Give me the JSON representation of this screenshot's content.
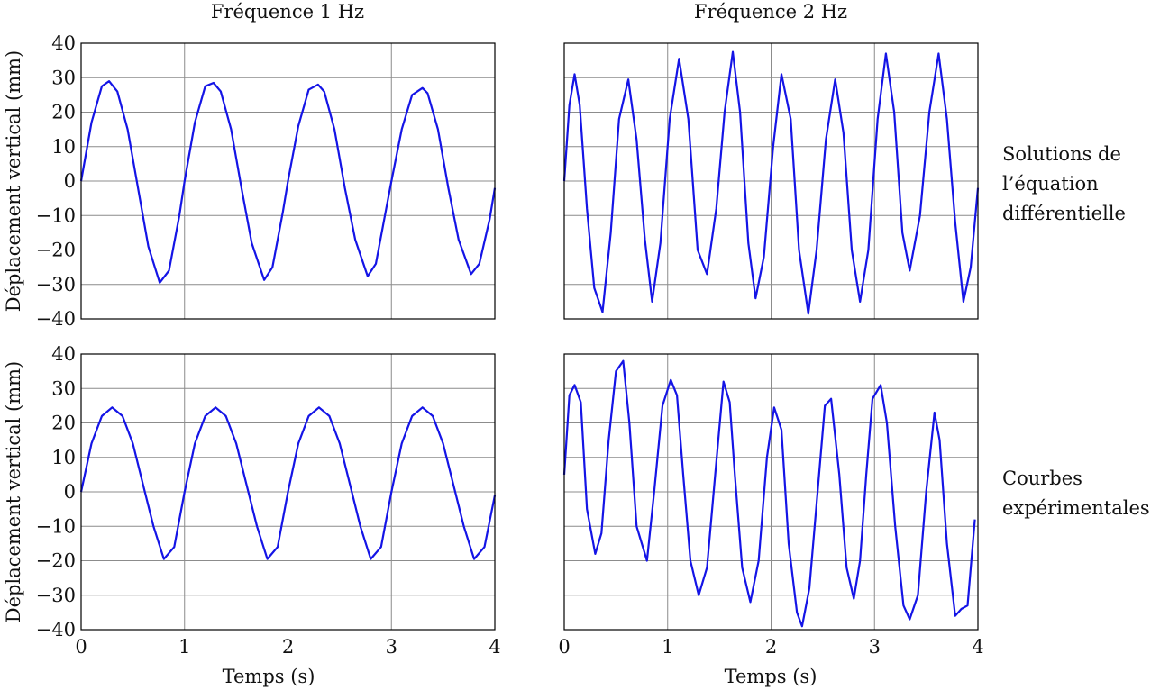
{
  "figure": {
    "column_titles": [
      "Fréquence 1 Hz",
      "Fréquence 2 Hz"
    ],
    "row_notes": [
      [
        "Solutions de",
        "l’équation",
        "différentielle"
      ],
      [
        "Courbes",
        "expérimentales"
      ]
    ],
    "ylabel": "Déplacement vertical (mm)",
    "xlabel": "Temps (s)"
  },
  "colors": {
    "curve": "#1414e6",
    "grid": "#8c8c8c",
    "frame": "#000000"
  },
  "chart_data": [
    {
      "type": "line",
      "panel": "top-left",
      "title": "Fréquence 1 Hz",
      "xlabel": "",
      "ylabel": "Déplacement vertical (mm)",
      "xlim": [
        0,
        4
      ],
      "ylim": [
        -40,
        40
      ],
      "x_ticks": [
        0,
        1,
        2,
        3,
        4
      ],
      "x_tick_labels_shown": false,
      "y_ticks": [
        -40,
        -30,
        -20,
        -10,
        0,
        10,
        20,
        30,
        40
      ],
      "y_tick_labels_shown": true,
      "grid": true,
      "series": [
        {
          "x": [
            0,
            0.1,
            0.2,
            0.27,
            0.35,
            0.45,
            0.55,
            0.65,
            0.76,
            0.85,
            0.95,
            1.0,
            1.1,
            1.2,
            1.28,
            1.35,
            1.45,
            1.55,
            1.65,
            1.77,
            1.85,
            1.95,
            2.0,
            2.1,
            2.2,
            2.29,
            2.35,
            2.45,
            2.55,
            2.65,
            2.77,
            2.85,
            2.95,
            3.0,
            3.1,
            3.2,
            3.3,
            3.35,
            3.45,
            3.55,
            3.65,
            3.77,
            3.85,
            3.95,
            4.0
          ],
          "y": [
            0,
            17,
            27.5,
            29,
            26,
            15,
            -2,
            -19,
            -29.5,
            -26,
            -10,
            0,
            17,
            27.5,
            28.5,
            26,
            15,
            -2,
            -18,
            -28.7,
            -25,
            -9,
            0,
            16,
            26.5,
            28,
            26,
            15,
            -2,
            -17,
            -27.6,
            -24,
            -8,
            0,
            15,
            25,
            27,
            25.5,
            15,
            -2,
            -17,
            -27,
            -24,
            -11,
            -2
          ]
        }
      ]
    },
    {
      "type": "line",
      "panel": "top-right",
      "title": "Fréquence 2 Hz",
      "xlabel": "",
      "ylabel": "",
      "xlim": [
        0,
        4
      ],
      "ylim": [
        -40,
        40
      ],
      "x_ticks": [
        0,
        1,
        2,
        3,
        4
      ],
      "x_tick_labels_shown": false,
      "y_ticks": [
        -40,
        -30,
        -20,
        -10,
        0,
        10,
        20,
        30,
        40
      ],
      "y_tick_labels_shown": false,
      "grid": true,
      "series": [
        {
          "x": [
            0,
            0.05,
            0.1,
            0.15,
            0.22,
            0.29,
            0.37,
            0.45,
            0.53,
            0.62,
            0.7,
            0.78,
            0.85,
            0.93,
            1.02,
            1.11,
            1.2,
            1.29,
            1.38,
            1.47,
            1.55,
            1.63,
            1.7,
            1.78,
            1.85,
            1.93,
            2.02,
            2.1,
            2.19,
            2.27,
            2.36,
            2.44,
            2.53,
            2.62,
            2.7,
            2.78,
            2.86,
            2.94,
            3.03,
            3.11,
            3.19,
            3.27,
            3.34,
            3.44,
            3.53,
            3.62,
            3.7,
            3.78,
            3.86,
            3.93,
            4.0
          ],
          "y": [
            0,
            22,
            31,
            22,
            -8,
            -31,
            -38,
            -15,
            18,
            29.5,
            12,
            -17,
            -35,
            -18,
            18,
            35.5,
            18,
            -20,
            -27,
            -8,
            20,
            37.5,
            20,
            -18,
            -34,
            -22,
            10,
            31,
            18,
            -20,
            -38.5,
            -20,
            12,
            29.5,
            14,
            -20,
            -35,
            -20,
            18,
            37,
            20,
            -15,
            -26,
            -10,
            20,
            37,
            18,
            -12,
            -35,
            -25,
            -2
          ]
        }
      ]
    },
    {
      "type": "line",
      "panel": "bottom-left",
      "title": "",
      "xlabel": "Temps (s)",
      "ylabel": "Déplacement vertical (mm)",
      "xlim": [
        0,
        4
      ],
      "ylim": [
        -40,
        40
      ],
      "x_ticks": [
        0,
        1,
        2,
        3,
        4
      ],
      "x_tick_labels_shown": true,
      "y_ticks": [
        -40,
        -30,
        -20,
        -10,
        0,
        10,
        20,
        30,
        40
      ],
      "y_tick_labels_shown": true,
      "grid": true,
      "series": [
        {
          "x": [
            0,
            0.1,
            0.2,
            0.3,
            0.4,
            0.5,
            0.6,
            0.7,
            0.8,
            0.9,
            1.0,
            1.1,
            1.2,
            1.3,
            1.4,
            1.5,
            1.6,
            1.7,
            1.8,
            1.9,
            2.0,
            2.1,
            2.2,
            2.3,
            2.4,
            2.5,
            2.6,
            2.7,
            2.8,
            2.9,
            3.0,
            3.1,
            3.2,
            3.3,
            3.4,
            3.5,
            3.6,
            3.7,
            3.8,
            3.9,
            4.0
          ],
          "y": [
            0,
            14,
            22,
            24.5,
            22,
            14,
            2,
            -10,
            -19.5,
            -16,
            0,
            14,
            22,
            24.5,
            22,
            14,
            2,
            -10,
            -19.5,
            -16,
            0,
            14,
            22,
            24.5,
            22,
            14,
            2,
            -10,
            -19.5,
            -16,
            0,
            14,
            22,
            24.5,
            22,
            14,
            2,
            -10,
            -19.5,
            -16,
            -1
          ]
        }
      ]
    },
    {
      "type": "line",
      "panel": "bottom-right",
      "title": "",
      "xlabel": "Temps (s)",
      "ylabel": "",
      "xlim": [
        0,
        4
      ],
      "ylim": [
        -40,
        40
      ],
      "x_ticks": [
        0,
        1,
        2,
        3,
        4
      ],
      "x_tick_labels_shown": true,
      "y_ticks": [
        -40,
        -30,
        -20,
        -10,
        0,
        10,
        20,
        30,
        40
      ],
      "y_tick_labels_shown": false,
      "grid": true,
      "series": [
        {
          "x": [
            0,
            0.05,
            0.1,
            0.16,
            0.22,
            0.3,
            0.36,
            0.43,
            0.5,
            0.57,
            0.63,
            0.7,
            0.8,
            0.87,
            0.95,
            1.03,
            1.09,
            1.15,
            1.22,
            1.3,
            1.38,
            1.46,
            1.54,
            1.6,
            1.65,
            1.72,
            1.8,
            1.88,
            1.96,
            2.03,
            2.1,
            2.17,
            2.25,
            2.3,
            2.37,
            2.45,
            2.52,
            2.58,
            2.66,
            2.73,
            2.8,
            2.86,
            2.92,
            2.98,
            3.06,
            3.12,
            3.2,
            3.28,
            3.34,
            3.42,
            3.5,
            3.58,
            3.63,
            3.7,
            3.78,
            3.84,
            3.9,
            3.97
          ],
          "y": [
            5,
            28,
            31,
            26,
            -5,
            -18,
            -12,
            15,
            35,
            38,
            20,
            -10,
            -20,
            0,
            25,
            32.5,
            28,
            5,
            -20,
            -30,
            -22,
            5,
            32,
            26,
            5,
            -22,
            -32,
            -20,
            10,
            24.5,
            18,
            -15,
            -35,
            -39,
            -28,
            0,
            25,
            27,
            5,
            -22,
            -31,
            -20,
            5,
            27,
            31,
            20,
            -10,
            -33,
            -37,
            -30,
            0,
            23,
            15,
            -15,
            -36,
            -34,
            -33,
            -8
          ]
        }
      ]
    }
  ]
}
